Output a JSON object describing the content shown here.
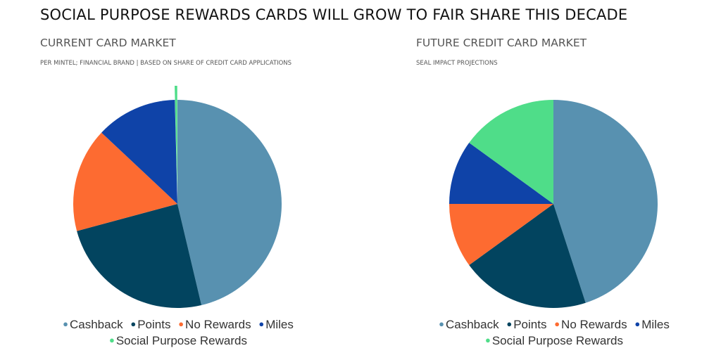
{
  "title": "SOCIAL PURPOSE REWARDS CARDS WILL GROW TO FAIR SHARE THIS DECADE",
  "legend_marker": "●",
  "colors": {
    "Cashback": "#5891b0",
    "Points": "#02445f",
    "No Rewards": "#fd6b31",
    "Miles": "#0f43a8",
    "Social Purpose Rewards": "#4fdd89"
  },
  "chart_data": [
    {
      "type": "pie",
      "title": "CURRENT CARD MARKET",
      "subtitle": "PER MINTEL; FINANCIAL BRAND | BASED ON SHARE OF CREDIT CARD APPLICATIONS",
      "categories": [
        "Cashback",
        "Points",
        "No Rewards",
        "Miles",
        "Social Purpose Rewards"
      ],
      "values": [
        46.3,
        24.5,
        16.2,
        12.6,
        0.4
      ],
      "exploded": [
        "Social Purpose Rewards"
      ],
      "legend": "bottom"
    },
    {
      "type": "pie",
      "title": "FUTURE CREDIT CARD MARKET",
      "subtitle": "SEAL IMPACT PROJECTIONS",
      "categories": [
        "Cashback",
        "Points",
        "No Rewards",
        "Miles",
        "Social Purpose Rewards"
      ],
      "values": [
        45,
        20,
        10,
        10,
        15
      ],
      "legend": "bottom"
    }
  ]
}
